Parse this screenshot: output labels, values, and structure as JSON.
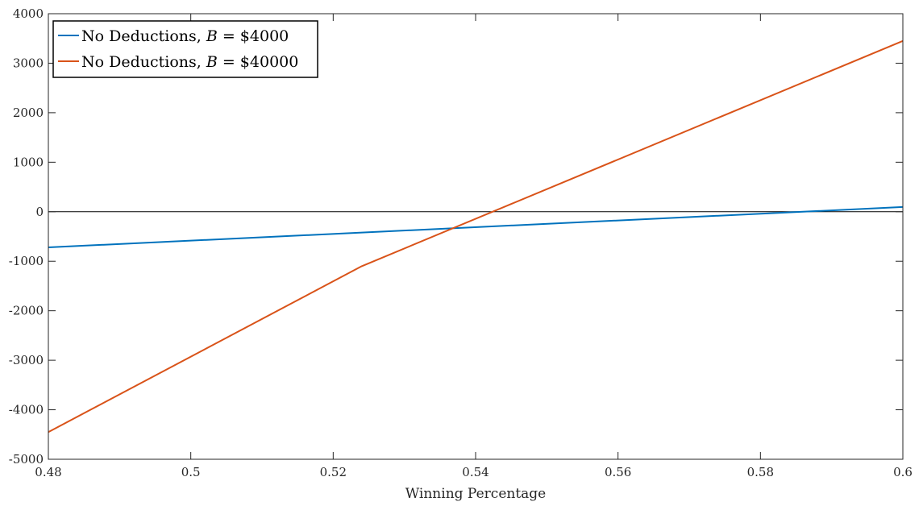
{
  "chart_data": {
    "type": "line",
    "title": "",
    "xlabel": "Winning Percentage",
    "ylabel": "",
    "xlim": [
      0.48,
      0.6
    ],
    "ylim": [
      -5000,
      4000
    ],
    "xticks": [
      0.48,
      0.5,
      0.52,
      0.54,
      0.56,
      0.58,
      0.6
    ],
    "xtick_labels": [
      "0.48",
      "0.5",
      "0.52",
      "0.54",
      "0.56",
      "0.58",
      "0.6"
    ],
    "yticks": [
      4000,
      3000,
      2000,
      1000,
      0,
      -1000,
      -2000,
      -3000,
      -4000,
      -5000
    ],
    "ytick_labels": [
      "4000",
      "3000",
      "2000",
      "1000",
      "0",
      "-1000",
      "-2000",
      "-3000",
      "-4000",
      "-5000"
    ],
    "grid": false,
    "legend_position": "top-left",
    "reference_line_y": 0,
    "reference_line_color": "#000000",
    "series": [
      {
        "name": "No Deductions, B = $4000",
        "legend_prefix": "No Deductions, ",
        "legend_var": "B",
        "legend_rest": " = $4000",
        "color": "#0072BD",
        "x": [
          0.48,
          0.6
        ],
        "y": [
          -720,
          95
        ]
      },
      {
        "name": "No Deductions, B = $40000",
        "legend_prefix": "No Deductions, ",
        "legend_var": "B",
        "legend_rest": " = $40000",
        "color": "#D95319",
        "x": [
          0.48,
          0.524,
          0.6
        ],
        "y": [
          -4450,
          -1100,
          3450
        ]
      }
    ]
  }
}
